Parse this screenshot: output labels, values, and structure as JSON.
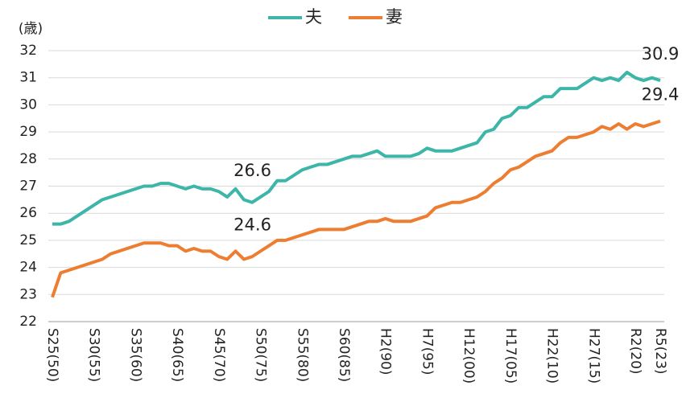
{
  "chart_data": {
    "type": "line",
    "y_label": "(歳)",
    "categories": [
      "S25(50)",
      null,
      null,
      null,
      null,
      "S30(55)",
      null,
      null,
      null,
      null,
      "S35(60)",
      null,
      null,
      null,
      null,
      "S40(65)",
      null,
      null,
      null,
      null,
      "S45(70)",
      null,
      null,
      null,
      null,
      "S50(75)",
      null,
      null,
      null,
      null,
      "S55(80)",
      null,
      null,
      null,
      null,
      "S60(85)",
      null,
      null,
      null,
      null,
      "H2(90)",
      null,
      null,
      null,
      null,
      "H7(95)",
      null,
      null,
      null,
      null,
      "H12(00)",
      null,
      null,
      null,
      null,
      "H17(05)",
      null,
      null,
      null,
      null,
      "H22(10)",
      null,
      null,
      null,
      null,
      "H27(15)",
      null,
      null,
      null,
      null,
      "R2(20)",
      null,
      null,
      "R5(23)"
    ],
    "series": [
      {
        "name": "夫",
        "color": "#3db5a8",
        "label_indices": [
          25,
          73
        ],
        "values": [
          25.6,
          25.6,
          25.7,
          25.9,
          26.1,
          26.3,
          26.5,
          26.6,
          26.7,
          26.8,
          26.9,
          27.0,
          27.0,
          27.1,
          27.1,
          27.0,
          26.9,
          27.0,
          26.9,
          26.9,
          26.8,
          26.6,
          26.9,
          26.5,
          26.4,
          26.6,
          26.8,
          27.2,
          27.2,
          27.4,
          27.6,
          27.7,
          27.8,
          27.8,
          27.9,
          28.0,
          28.1,
          28.1,
          28.2,
          28.3,
          28.1,
          28.1,
          28.1,
          28.1,
          28.2,
          28.4,
          28.3,
          28.3,
          28.3,
          28.4,
          28.5,
          28.6,
          29.0,
          29.1,
          29.5,
          29.6,
          29.9,
          29.9,
          30.1,
          30.3,
          30.3,
          30.6,
          30.6,
          30.6,
          30.8,
          31.0,
          30.9,
          31.0,
          30.9,
          31.2,
          31.0,
          30.9,
          31.0,
          30.9
        ]
      },
      {
        "name": "妻",
        "color": "#ed7d31",
        "label_indices": [
          25,
          73
        ],
        "values": [
          22.9,
          23.8,
          23.9,
          24.0,
          24.1,
          24.2,
          24.3,
          24.5,
          24.6,
          24.7,
          24.8,
          24.9,
          24.9,
          24.9,
          24.8,
          24.8,
          24.6,
          24.7,
          24.6,
          24.6,
          24.4,
          24.3,
          24.6,
          24.3,
          24.4,
          24.6,
          24.8,
          25.0,
          25.0,
          25.1,
          25.2,
          25.3,
          25.4,
          25.4,
          25.4,
          25.4,
          25.5,
          25.6,
          25.7,
          25.7,
          25.8,
          25.7,
          25.7,
          25.7,
          25.8,
          25.9,
          26.2,
          26.3,
          26.4,
          26.4,
          26.5,
          26.6,
          26.8,
          27.1,
          27.3,
          27.6,
          27.7,
          27.9,
          28.1,
          28.2,
          28.3,
          28.6,
          28.8,
          28.8,
          28.9,
          29.0,
          29.2,
          29.1,
          29.3,
          29.1,
          29.3,
          29.2,
          29.3,
          29.4
        ]
      }
    ],
    "ylim": [
      22,
      32
    ],
    "yticks": [
      22,
      23,
      24,
      25,
      26,
      27,
      28,
      29,
      30,
      31,
      32
    ],
    "grid": true,
    "legend": "top"
  }
}
